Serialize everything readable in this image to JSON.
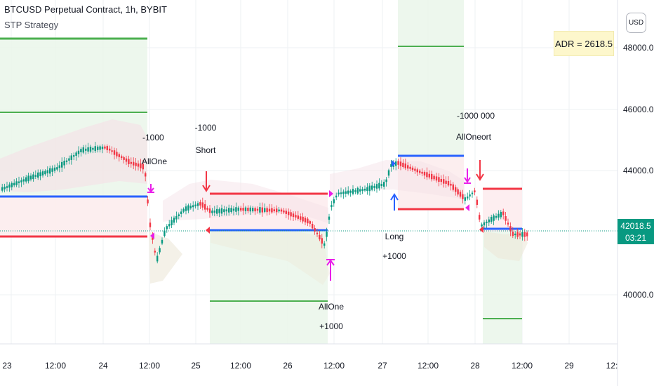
{
  "header": {
    "symbol_title": "BTCUSD Perpetual Contract, 1h, BYBIT",
    "indicator_name": "STP Strategy"
  },
  "adr_box": {
    "text": "ADR = 2618.5",
    "background": "#fdf7cc"
  },
  "currency_button": {
    "label": "USD"
  },
  "price_axis": {
    "ticks": [
      "48000.0",
      "46000.0",
      "44000.0",
      "40000.0"
    ],
    "current_price": "42018.5",
    "countdown": "03:21",
    "current_price_color": "#089981"
  },
  "time_axis": {
    "ticks": [
      "23",
      "12:00",
      "24",
      "12:00",
      "25",
      "12:00",
      "26",
      "12:00",
      "27",
      "12:00",
      "28",
      "12:00",
      "29",
      "12:"
    ]
  },
  "annotations": [
    {
      "lines": [
        "-1000",
        "AllOne"
      ]
    },
    {
      "lines": [
        "-1000",
        "Short"
      ]
    },
    {
      "lines": [
        "AllOne",
        "+1000"
      ]
    },
    {
      "lines": [
        "Long",
        "+1000"
      ]
    },
    {
      "lines": [
        "-1000 000",
        "AllOneort"
      ]
    }
  ],
  "colors": {
    "up_candle": "#089981",
    "down_candle": "#f23645",
    "stop_line": "#f23645",
    "entry_line": "#2962ff",
    "target_line": "#4caf50",
    "long_zone": "#e8f5e9",
    "short_zone": "#fdecee",
    "signal_arrow": "#e91ee9"
  }
}
